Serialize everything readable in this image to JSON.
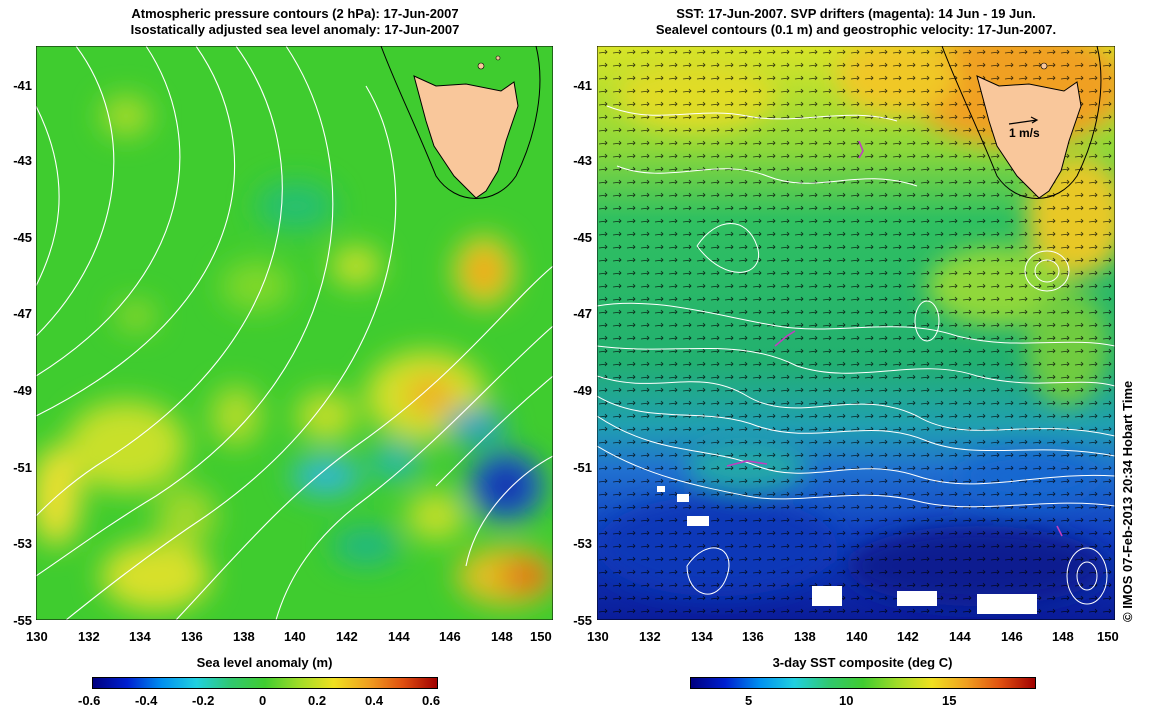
{
  "left_panel": {
    "title_line1": "Atmospheric pressure contours (2 hPa): 17-Jun-2007",
    "title_line2": "Isostatically adjusted sea level anomaly: 17-Jun-2007",
    "x_ticks": [
      "130",
      "132",
      "134",
      "136",
      "138",
      "140",
      "142",
      "144",
      "146",
      "148",
      "150"
    ],
    "y_ticks": [
      "-41",
      "-43",
      "-45",
      "-47",
      "-49",
      "-51",
      "-53",
      "-55"
    ],
    "colorbar": {
      "title": "Sea level anomaly (m)",
      "ticks": [
        "-0.6",
        "-0.4",
        "-0.2",
        "0",
        "0.2",
        "0.4",
        "0.6"
      ],
      "range": [
        -0.6,
        0.6
      ]
    }
  },
  "right_panel": {
    "title_line1": "SST: 17-Jun-2007. SVP drifters (magenta): 14 Jun - 19 Jun.",
    "title_line2": "Sealevel contours (0.1 m) and geostrophic velocity: 17-Jun-2007.",
    "x_ticks": [
      "130",
      "132",
      "134",
      "136",
      "138",
      "140",
      "142",
      "144",
      "146",
      "148",
      "150"
    ],
    "y_ticks": [
      "-41",
      "-43",
      "-45",
      "-47",
      "-49",
      "-51",
      "-53",
      "-55"
    ],
    "velocity_scale_label": "1 m/s",
    "colorbar": {
      "title": "3-day SST composite (deg C)",
      "ticks": [
        "5",
        "10",
        "15"
      ],
      "range": [
        2,
        20
      ]
    }
  },
  "credit": "© IMOS 07-Feb-2013 20:34 Hobart Time",
  "colors": {
    "land": "#f9c79b",
    "contour": "#ffffff",
    "drifter": "#c040c0"
  }
}
